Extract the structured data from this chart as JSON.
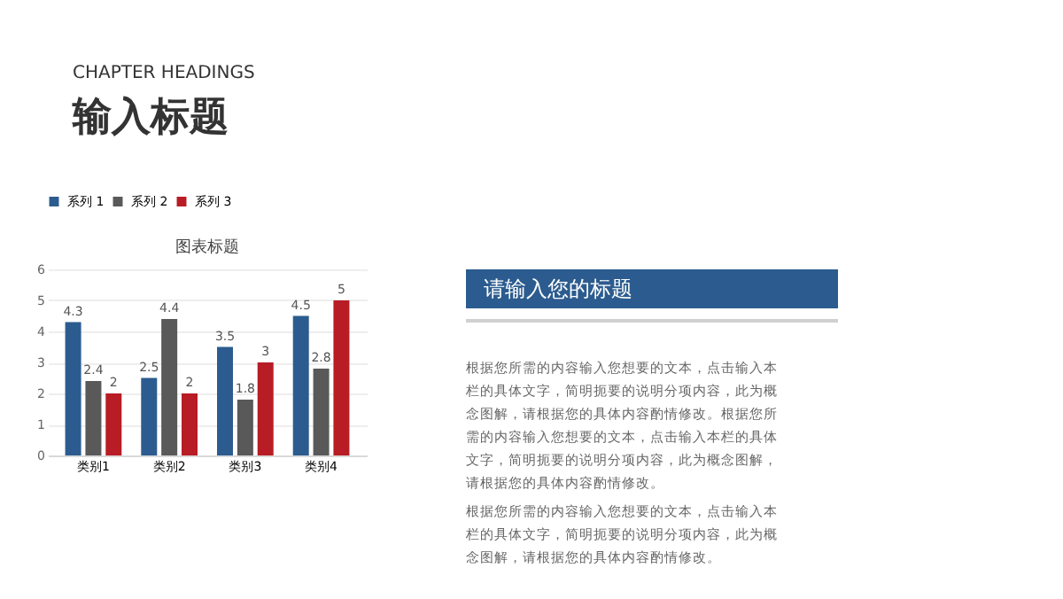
{
  "chart_data": [
    {
      "type": "other",
      "annotations": [
        "CHAPTER HEADINGS",
        "输入标题"
      ]
    },
    {
      "type": "bar",
      "title": "图表标题",
      "categories": [
        "类别1",
        "类别2",
        "类别3",
        "类别4"
      ],
      "series": [
        {
          "name": "系列 1",
          "color": "#2c5c8f",
          "values": [
            4.3,
            2.5,
            3.5,
            4.5
          ]
        },
        {
          "name": "系列 2",
          "color": "#595959",
          "values": [
            2.4,
            4.4,
            1.8,
            2.8
          ]
        },
        {
          "name": "系列 3",
          "color": "#b81c25",
          "values": [
            2,
            2,
            3,
            5
          ]
        }
      ],
      "ylim": [
        0,
        6
      ],
      "yticks": [
        0,
        1,
        2,
        3,
        4,
        5,
        6
      ],
      "grid": "y",
      "legend": "top",
      "data_labels": true
    },
    {
      "type": "other",
      "title": "请输入您的标题",
      "annotations": [
        "根据您所需的内容输入您想要的文本，点击输入本栏的具体文字，简明扼要的说明分项内容，此为概念图解，请根据您的具体内容酌情修改。根据您所需的内容输入您想要的文本，点击输入本栏的具体文字，简明扼要的说明分项内容，此为概念图解，请根据您的具体内容酌情修改。",
        "根据您所需的内容输入您想要的文本，点击输入本栏的具体文字，简明扼要的说明分项内容，此为概念图解，请根据您的具体内容酌情修改。"
      ]
    }
  ]
}
